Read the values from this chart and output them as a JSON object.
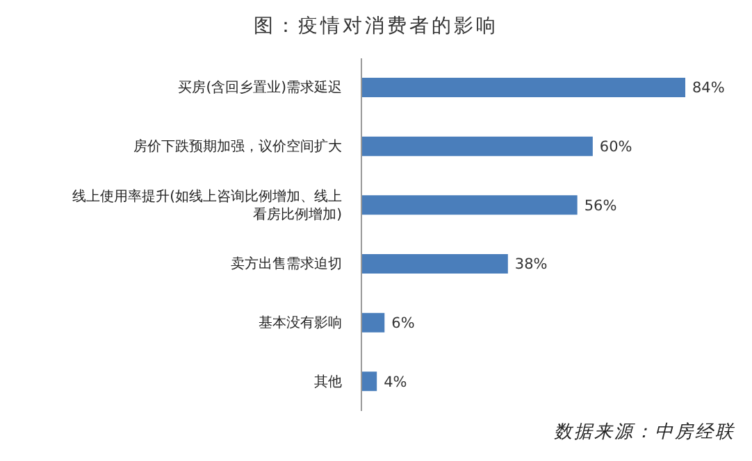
{
  "chart_data": {
    "type": "bar",
    "orientation": "horizontal",
    "title": "图：疫情对消费者的影响",
    "categories": [
      "买房(含回乡置业)需求延迟",
      "房价下跌预期加强，议价空间扩大",
      "线上使用率提升(如线上咨询比例增加、线上看房比例增加)",
      "卖方出售需求迫切",
      "基本没有影响",
      "其他"
    ],
    "values": [
      84,
      60,
      56,
      38,
      6,
      4
    ],
    "value_labels": [
      "84%",
      "60%",
      "56%",
      "38%",
      "6%",
      "4%"
    ],
    "color": "#4a7ebb",
    "grid": false,
    "legend": false,
    "annotations": [
      "数据来源：中房经联"
    ]
  }
}
